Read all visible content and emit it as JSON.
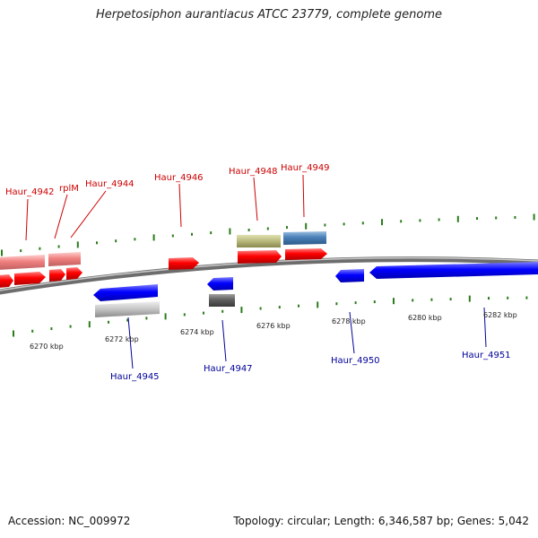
{
  "title": "Herpetosiphon aurantiacus ATCC 23779, complete genome",
  "footer": {
    "accession": "Accession: NC_009972",
    "topology": "Topology: circular; Length: 6,346,587 bp; Genes: 5,042"
  },
  "scale_labels": [
    "6270 kbp",
    "6272 kbp",
    "6274 kbp",
    "6276 kbp",
    "6278 kbp",
    "6280 kbp",
    "6282 kbp"
  ],
  "forward_labels": [
    "Haur_4942",
    "rplM",
    "Haur_4944",
    "Haur_4946",
    "Haur_4948",
    "Haur_4949"
  ],
  "reverse_labels": [
    "Haur_4945",
    "Haur_4947",
    "Haur_4950",
    "Haur_4951"
  ],
  "colors": {
    "forward_label": "#cc0000",
    "reverse_label": "#000099",
    "forward_gene": "#ee0000",
    "reverse_gene": "#0000ee",
    "tick": "#2a7d1a",
    "backbone": "#888888"
  }
}
